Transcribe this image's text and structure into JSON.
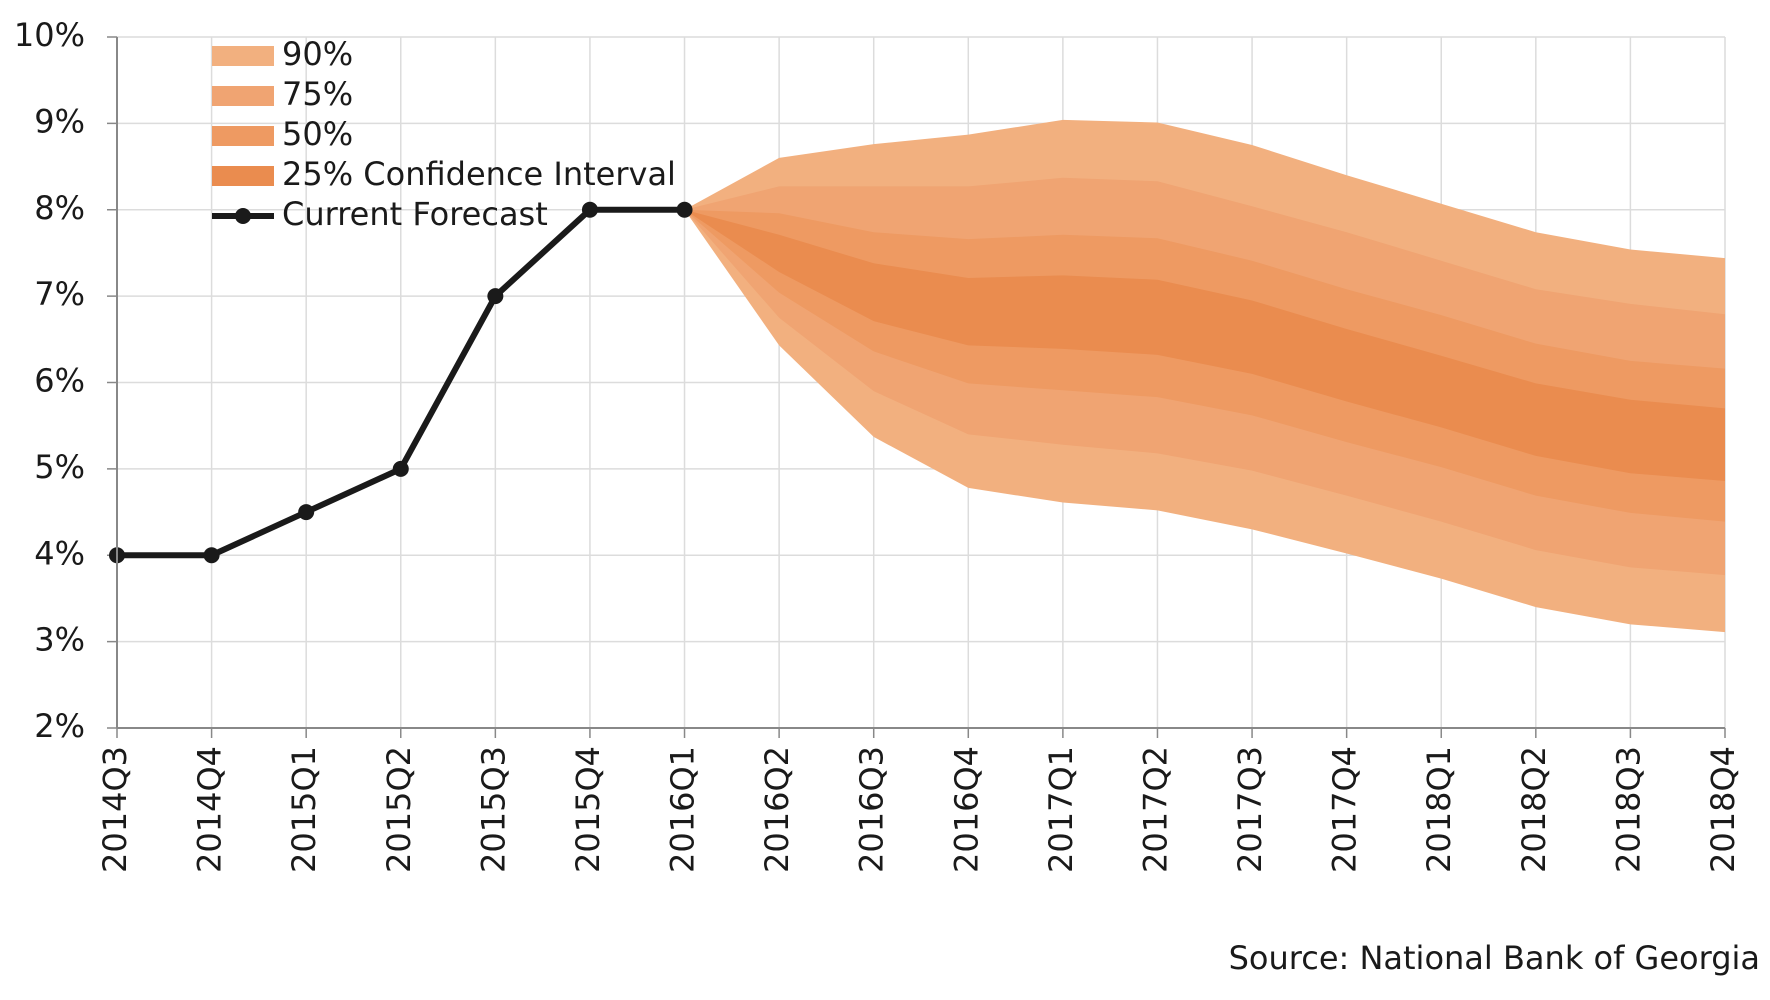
{
  "chart_data": {
    "type": "fan",
    "categories": [
      "2014Q3",
      "2014Q4",
      "2015Q1",
      "2015Q2",
      "2015Q3",
      "2015Q4",
      "2016Q1",
      "2016Q2",
      "2016Q3",
      "2016Q4",
      "2017Q1",
      "2017Q2",
      "2017Q3",
      "2017Q4",
      "2018Q1",
      "2018Q2",
      "2018Q3",
      "2018Q4"
    ],
    "ylim": [
      2,
      10
    ],
    "yticks": [
      {
        "value": 2,
        "label": "2%"
      },
      {
        "value": 3,
        "label": "3%"
      },
      {
        "value": 4,
        "label": "4%"
      },
      {
        "value": 5,
        "label": "5%"
      },
      {
        "value": 6,
        "label": "6%"
      },
      {
        "value": 7,
        "label": "7%"
      },
      {
        "value": 8,
        "label": "8%"
      },
      {
        "value": 9,
        "label": "9%"
      },
      {
        "value": 10,
        "label": "10%"
      }
    ],
    "grid": true,
    "legend": "upper left",
    "bands": [
      {
        "name": "90%",
        "color": "#f2b07f",
        "upper": [
          null,
          null,
          null,
          null,
          null,
          null,
          8,
          8.6,
          8.76,
          8.87,
          9.04,
          9.01,
          8.75,
          8.4,
          8.07,
          7.74,
          7.54,
          7.44
        ],
        "lower": [
          null,
          null,
          null,
          null,
          null,
          null,
          8,
          6.43,
          5.37,
          4.78,
          4.61,
          4.52,
          4.3,
          4.02,
          3.73,
          3.4,
          3.2,
          3.11
        ]
      },
      {
        "name": "75%",
        "color": "#f0a472",
        "upper": [
          null,
          null,
          null,
          null,
          null,
          null,
          8,
          8.27,
          8.27,
          8.27,
          8.37,
          8.33,
          8.04,
          7.74,
          7.41,
          7.08,
          6.91,
          6.79
        ],
        "lower": [
          null,
          null,
          null,
          null,
          null,
          null,
          8,
          6.75,
          5.9,
          5.4,
          5.28,
          5.18,
          4.98,
          4.69,
          4.39,
          4.06,
          3.86,
          3.77
        ]
      },
      {
        "name": "50%",
        "color": "#ee9a62",
        "upper": [
          null,
          null,
          null,
          null,
          null,
          null,
          8,
          7.96,
          7.74,
          7.66,
          7.71,
          7.67,
          7.41,
          7.08,
          6.78,
          6.45,
          6.25,
          6.16
        ],
        "lower": [
          null,
          null,
          null,
          null,
          null,
          null,
          8,
          7.04,
          6.36,
          5.99,
          5.91,
          5.83,
          5.62,
          5.31,
          5.02,
          4.69,
          4.49,
          4.39
        ]
      },
      {
        "name": "25% Confidence Interval",
        "color": "#ea8c4f",
        "upper": [
          null,
          null,
          null,
          null,
          null,
          null,
          8,
          7.71,
          7.38,
          7.21,
          7.24,
          7.19,
          6.95,
          6.62,
          6.31,
          5.99,
          5.8,
          5.7
        ],
        "lower": [
          null,
          null,
          null,
          null,
          null,
          null,
          8,
          7.28,
          6.71,
          6.43,
          6.39,
          6.32,
          6.1,
          5.78,
          5.48,
          5.15,
          4.95,
          4.86
        ]
      }
    ],
    "series": [
      {
        "name": "Current Forecast",
        "color": "#1a1a1a",
        "values": [
          4,
          4,
          4.5,
          5,
          7,
          8,
          8,
          null,
          null,
          null,
          null,
          null,
          null,
          null,
          null,
          null,
          null,
          null
        ]
      }
    ],
    "source": "Source: National Bank of Georgia"
  }
}
